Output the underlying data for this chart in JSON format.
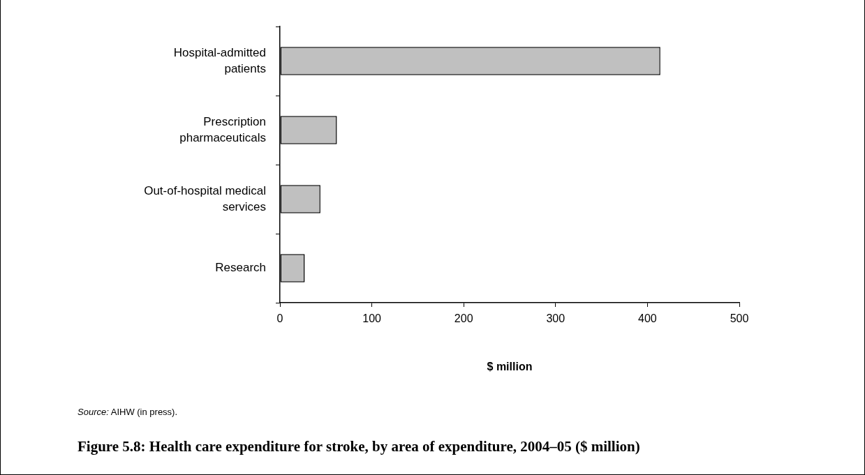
{
  "chart_data": {
    "type": "bar",
    "orientation": "horizontal",
    "title": "Figure 5.8: Health care expenditure for stroke, by area of expenditure, 2004–05 ($ million)",
    "xlabel": "$ million",
    "categories": [
      "Hospital-admitted patients",
      "Prescription pharmaceuticals",
      "Out-of-hospital medical services",
      "Research"
    ],
    "values": [
      414,
      62,
      44,
      27
    ],
    "color": "#c0c0c0",
    "xlim": [
      0,
      500
    ],
    "xticks": [
      0,
      100,
      200,
      300,
      400,
      500
    ],
    "grid": false,
    "legend": false,
    "annotations": [
      "Source: AIHW (in press)."
    ]
  }
}
